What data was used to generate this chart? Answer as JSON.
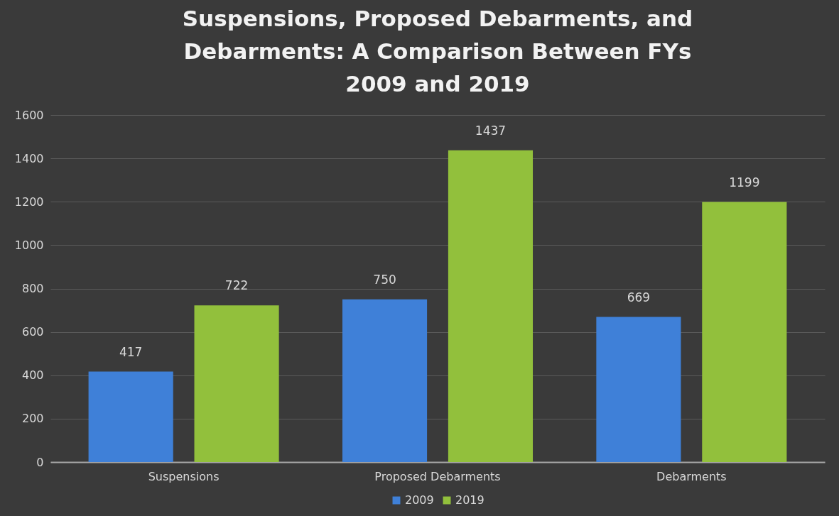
{
  "chart_data": {
    "type": "bar",
    "title": "Suspensions, Proposed Debarments, and Debarments: A Comparison Between FYs 2009 and 2019",
    "categories": [
      "Suspensions",
      "Proposed Debarments",
      "Debarments"
    ],
    "series": [
      {
        "name": "2009",
        "color": "#3f80d8",
        "values": [
          417,
          750,
          669
        ]
      },
      {
        "name": "2019",
        "color": "#92c03c",
        "values": [
          722,
          1437,
          1199
        ]
      }
    ],
    "ylim": [
      0,
      1600
    ],
    "yticks": [
      0,
      200,
      400,
      600,
      800,
      1000,
      1200,
      1400,
      1600
    ],
    "grid": "y",
    "legend": "bottom",
    "data_labels": true
  }
}
